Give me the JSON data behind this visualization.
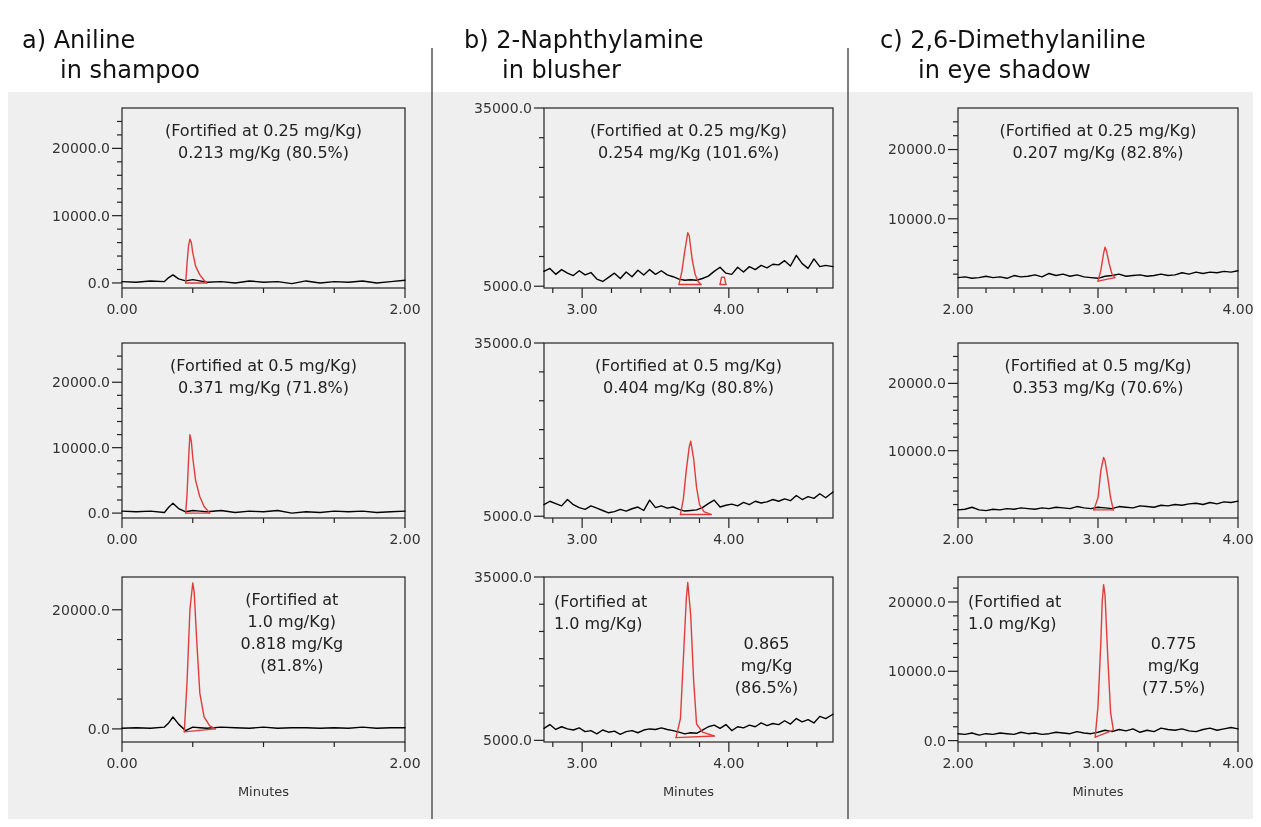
{
  "chart_data": [
    {
      "type": "line",
      "title": "a)  Aniline\nin shampoo",
      "annotations": [
        "(Fortified at 0.25 mg/Kg)\n0.213 mg/Kg (80.5%)"
      ],
      "xlim": [
        0,
        2
      ],
      "xticks": [
        {
          "value": 0,
          "label": "0.00"
        },
        {
          "value": 0.5,
          "label": null
        },
        {
          "value": 1,
          "label": null
        },
        {
          "value": 1.5,
          "label": null
        },
        {
          "value": 2,
          "label": "2.00"
        }
      ],
      "ylim": [
        -750,
        26000
      ],
      "yticks": [
        {
          "value": 0,
          "label": "0.0"
        },
        {
          "value": 2000,
          "label": null
        },
        {
          "value": 4000,
          "label": null
        },
        {
          "value": 6000,
          "label": null
        },
        {
          "value": 8000,
          "label": null
        },
        {
          "value": 10000,
          "label": "10000.0"
        },
        {
          "value": 12000,
          "label": null
        },
        {
          "value": 14000,
          "label": null
        },
        {
          "value": 16000,
          "label": null
        },
        {
          "value": 18000,
          "label": null
        },
        {
          "value": 20000,
          "label": "20000.0"
        },
        {
          "value": 22000,
          "label": null
        },
        {
          "value": 24000,
          "label": null
        }
      ],
      "series": [
        {
          "color": "#000000",
          "x": [
            0,
            0.1,
            0.2,
            0.3,
            0.33,
            0.36,
            0.4,
            0.45,
            0.5,
            0.55,
            0.6,
            0.7,
            0.8,
            0.9,
            1.0,
            1.1,
            1.2,
            1.3,
            1.4,
            1.5,
            1.6,
            1.7,
            1.8,
            1.9,
            2.0
          ],
          "values": [
            200,
            100,
            300,
            200,
            800,
            1200,
            600,
            300,
            500,
            300,
            100,
            200,
            0,
            300,
            100,
            200,
            -100,
            300,
            0,
            200,
            100,
            300,
            0,
            200,
            400
          ]
        },
        {
          "color": "#e03c3c",
          "x": [
            0.45,
            0.46,
            0.47,
            0.48,
            0.49,
            0.5,
            0.52,
            0.55,
            0.58,
            0.6
          ],
          "values": [
            0,
            3000,
            5500,
            6500,
            6000,
            4500,
            2500,
            1200,
            400,
            0
          ]
        },
        {
          "color": "#e03c3c",
          "x": [
            0.45,
            0.6
          ],
          "values": [
            0,
            0
          ]
        }
      ]
    },
    {
      "type": "line",
      "annotations": [
        "(Fortified at 0.5 mg/Kg)\n0.371 mg/Kg (71.8%)"
      ],
      "xlim": [
        0,
        2
      ],
      "xticks": [
        {
          "value": 0,
          "label": "0.00"
        },
        {
          "value": 0.5,
          "label": null
        },
        {
          "value": 1,
          "label": null
        },
        {
          "value": 1.5,
          "label": null
        },
        {
          "value": 2,
          "label": "2.00"
        }
      ],
      "ylim": [
        -750,
        26000
      ],
      "yticks": [
        {
          "value": 0,
          "label": "0.0"
        },
        {
          "value": 2000,
          "label": null
        },
        {
          "value": 4000,
          "label": null
        },
        {
          "value": 6000,
          "label": null
        },
        {
          "value": 8000,
          "label": null
        },
        {
          "value": 10000,
          "label": "10000.0"
        },
        {
          "value": 12000,
          "label": null
        },
        {
          "value": 14000,
          "label": null
        },
        {
          "value": 16000,
          "label": null
        },
        {
          "value": 18000,
          "label": null
        },
        {
          "value": 20000,
          "label": "20000.0"
        },
        {
          "value": 22000,
          "label": null
        },
        {
          "value": 24000,
          "label": null
        }
      ],
      "series": [
        {
          "color": "#000000",
          "x": [
            0,
            0.1,
            0.2,
            0.3,
            0.33,
            0.36,
            0.4,
            0.45,
            0.5,
            0.55,
            0.6,
            0.7,
            0.8,
            0.9,
            1.0,
            1.1,
            1.2,
            1.3,
            1.4,
            1.5,
            1.6,
            1.7,
            1.8,
            1.9,
            2.0
          ],
          "values": [
            300,
            200,
            300,
            100,
            900,
            1500,
            700,
            200,
            400,
            300,
            200,
            400,
            100,
            300,
            200,
            400,
            0,
            200,
            100,
            300,
            200,
            300,
            100,
            200,
            300
          ]
        },
        {
          "color": "#e03c3c",
          "x": [
            0.45,
            0.46,
            0.47,
            0.48,
            0.49,
            0.5,
            0.52,
            0.55,
            0.58,
            0.62
          ],
          "values": [
            0,
            3000,
            8000,
            12000,
            11000,
            8500,
            5000,
            2500,
            1000,
            0
          ]
        },
        {
          "color": "#e03c3c",
          "x": [
            0.45,
            0.62
          ],
          "values": [
            0,
            0
          ]
        }
      ]
    },
    {
      "type": "line",
      "xlabel": "Minutes",
      "annotations": [
        "(Fortified at\n1.0 mg/Kg)\n0.818 mg/Kg\n(81.8%)"
      ],
      "xlim": [
        0,
        2
      ],
      "xticks": [
        {
          "value": 0,
          "label": "0.00"
        },
        {
          "value": 0.5,
          "label": null
        },
        {
          "value": 1,
          "label": null
        },
        {
          "value": 1.5,
          "label": null
        },
        {
          "value": 2,
          "label": "2.00"
        }
      ],
      "ylim": [
        -2200,
        25500
      ],
      "yticks": [
        {
          "value": 0,
          "label": "0.0"
        },
        {
          "value": 5000,
          "label": null
        },
        {
          "value": 10000,
          "label": null
        },
        {
          "value": 15000,
          "label": null
        },
        {
          "value": 20000,
          "label": "20000.0"
        }
      ],
      "series": [
        {
          "color": "#000000",
          "x": [
            0,
            0.1,
            0.2,
            0.3,
            0.33,
            0.36,
            0.4,
            0.45,
            0.5,
            0.55,
            0.6,
            0.7,
            0.8,
            0.9,
            1.0,
            1.1,
            1.2,
            1.3,
            1.4,
            1.5,
            1.6,
            1.7,
            1.8,
            1.9,
            2.0
          ],
          "values": [
            100,
            200,
            100,
            300,
            1000,
            2000,
            800,
            -300,
            300,
            200,
            100,
            300,
            200,
            100,
            300,
            100,
            200,
            200,
            100,
            200,
            100,
            300,
            100,
            200,
            200
          ]
        },
        {
          "color": "#e03c3c",
          "x": [
            0.44,
            0.46,
            0.48,
            0.5,
            0.51,
            0.53,
            0.55,
            0.58,
            0.62,
            0.66
          ],
          "values": [
            -500,
            8000,
            20000,
            24500,
            23000,
            14000,
            6000,
            2000,
            500,
            0
          ]
        },
        {
          "color": "#e03c3c",
          "x": [
            0.44,
            0.66
          ],
          "values": [
            -500,
            0
          ]
        }
      ]
    },
    {
      "type": "line",
      "title": "b)  2-Naphthylamine\nin blusher",
      "annotations": [
        "(Fortified at 0.25 mg/Kg)\n0.254 mg/Kg (101.6%)"
      ],
      "xlim": [
        2.74,
        4.71
      ],
      "xticks": [
        {
          "value": 2.8,
          "label": null
        },
        {
          "value": 3,
          "label": "3.00"
        },
        {
          "value": 3.2,
          "label": null
        },
        {
          "value": 3.4,
          "label": null
        },
        {
          "value": 3.6,
          "label": null
        },
        {
          "value": 3.8,
          "label": null
        },
        {
          "value": 4,
          "label": "4.00"
        },
        {
          "value": 4.2,
          "label": null
        },
        {
          "value": 4.4,
          "label": null
        },
        {
          "value": 4.6,
          "label": null
        }
      ],
      "ylim": [
        4700,
        35000
      ],
      "yticks": [
        {
          "value": 5000,
          "label": "5000.0"
        },
        {
          "value": 10000,
          "label": null
        },
        {
          "value": 15000,
          "label": null
        },
        {
          "value": 20000,
          "label": null
        },
        {
          "value": 25000,
          "label": null
        },
        {
          "value": 30000,
          "label": null
        },
        {
          "value": 35000,
          "label": "35000.0"
        }
      ],
      "series": [
        {
          "color": "#000000",
          "x": [
            2.74,
            2.78,
            2.82,
            2.86,
            2.9,
            2.94,
            2.98,
            3.02,
            3.06,
            3.1,
            3.14,
            3.18,
            3.22,
            3.26,
            3.3,
            3.34,
            3.38,
            3.42,
            3.46,
            3.5,
            3.54,
            3.58,
            3.62,
            3.66,
            3.7,
            3.74,
            3.78,
            3.82,
            3.86,
            3.9,
            3.94,
            3.98,
            4.02,
            4.06,
            4.1,
            4.14,
            4.18,
            4.22,
            4.26,
            4.3,
            4.34,
            4.38,
            4.42,
            4.46,
            4.5,
            4.54,
            4.58,
            4.62,
            4.66,
            4.71
          ],
          "values": [
            7500,
            8000,
            7000,
            7800,
            7200,
            6800,
            7600,
            6900,
            7300,
            6200,
            5800,
            6500,
            7200,
            6300,
            7400,
            6600,
            7700,
            6900,
            7800,
            7000,
            7600,
            6900,
            6600,
            6200,
            6000,
            6100,
            6000,
            6300,
            6700,
            7500,
            8200,
            7200,
            7000,
            8200,
            7400,
            8300,
            7800,
            8500,
            8100,
            8700,
            8600,
            9300,
            8400,
            10200,
            8800,
            8000,
            9600,
            8300,
            8500,
            8300
          ]
        },
        {
          "color": "#e03c3c",
          "x": [
            3.66,
            3.68,
            3.7,
            3.72,
            3.73,
            3.75,
            3.77,
            3.79,
            3.81
          ],
          "values": [
            5300,
            7500,
            11000,
            14000,
            13500,
            9500,
            7000,
            5800,
            5300
          ]
        },
        {
          "color": "#e03c3c",
          "x": [
            3.66,
            3.81
          ],
          "values": [
            5300,
            5300
          ]
        },
        {
          "color": "#e03c3c",
          "x": [
            3.94,
            3.95,
            3.97,
            3.98
          ],
          "values": [
            5300,
            6500,
            6500,
            5300
          ]
        },
        {
          "color": "#e03c3c",
          "x": [
            3.94,
            3.98
          ],
          "values": [
            5300,
            5300
          ]
        }
      ]
    },
    {
      "type": "line",
      "annotations": [
        "(Fortified at 0.5 mg/Kg)\n0.404 mg/Kg (80.8%)"
      ],
      "xlim": [
        2.74,
        4.71
      ],
      "xticks": [
        {
          "value": 2.8,
          "label": null
        },
        {
          "value": 3,
          "label": "3.00"
        },
        {
          "value": 3.2,
          "label": null
        },
        {
          "value": 3.4,
          "label": null
        },
        {
          "value": 3.6,
          "label": null
        },
        {
          "value": 3.8,
          "label": null
        },
        {
          "value": 4,
          "label": "4.00"
        },
        {
          "value": 4.2,
          "label": null
        },
        {
          "value": 4.4,
          "label": null
        },
        {
          "value": 4.6,
          "label": null
        }
      ],
      "ylim": [
        4700,
        35000
      ],
      "yticks": [
        {
          "value": 5000,
          "label": "5000.0"
        },
        {
          "value": 10000,
          "label": null
        },
        {
          "value": 15000,
          "label": null
        },
        {
          "value": 20000,
          "label": null
        },
        {
          "value": 25000,
          "label": null
        },
        {
          "value": 30000,
          "label": null
        },
        {
          "value": 35000,
          "label": "35000.0"
        }
      ],
      "series": [
        {
          "color": "#000000",
          "x": [
            2.74,
            2.78,
            2.82,
            2.86,
            2.9,
            2.94,
            2.98,
            3.02,
            3.06,
            3.1,
            3.14,
            3.18,
            3.22,
            3.26,
            3.3,
            3.34,
            3.38,
            3.42,
            3.46,
            3.5,
            3.54,
            3.58,
            3.62,
            3.66,
            3.7,
            3.74,
            3.78,
            3.82,
            3.86,
            3.9,
            3.94,
            3.98,
            4.02,
            4.06,
            4.1,
            4.14,
            4.18,
            4.22,
            4.26,
            4.3,
            4.34,
            4.38,
            4.42,
            4.46,
            4.5,
            4.54,
            4.58,
            4.62,
            4.66,
            4.71
          ],
          "values": [
            7000,
            7600,
            7200,
            6800,
            7900,
            7000,
            6500,
            6200,
            6800,
            6400,
            6000,
            5600,
            5800,
            6200,
            5900,
            6300,
            6600,
            6000,
            7800,
            6500,
            6800,
            6400,
            6600,
            6200,
            5900,
            6000,
            6100,
            6500,
            7200,
            7800,
            6600,
            6900,
            7100,
            6800,
            7400,
            7000,
            7600,
            7300,
            7500,
            7900,
            7600,
            8000,
            7700,
            8600,
            7900,
            8400,
            8100,
            8900,
            8200,
            9200
          ]
        },
        {
          "color": "#e03c3c",
          "x": [
            3.67,
            3.69,
            3.71,
            3.73,
            3.74,
            3.76,
            3.78,
            3.8,
            3.83,
            3.88
          ],
          "values": [
            5300,
            8000,
            13000,
            17000,
            18000,
            15000,
            10000,
            7000,
            5800,
            5300
          ]
        },
        {
          "color": "#e03c3c",
          "x": [
            3.67,
            3.88
          ],
          "values": [
            5300,
            5300
          ]
        }
      ]
    },
    {
      "type": "line",
      "xlabel": "Minutes",
      "annotations": [
        "(Fortified at\n1.0 mg/Kg)",
        "0.865\nmg/Kg\n(86.5%)"
      ],
      "xlim": [
        2.74,
        4.71
      ],
      "xticks": [
        {
          "value": 2.8,
          "label": null
        },
        {
          "value": 3,
          "label": "3.00"
        },
        {
          "value": 3.2,
          "label": null
        },
        {
          "value": 3.4,
          "label": null
        },
        {
          "value": 3.6,
          "label": null
        },
        {
          "value": 3.8,
          "label": null
        },
        {
          "value": 4,
          "label": "4.00"
        },
        {
          "value": 4.2,
          "label": null
        },
        {
          "value": 4.4,
          "label": null
        },
        {
          "value": 4.6,
          "label": null
        }
      ],
      "ylim": [
        4700,
        35000
      ],
      "yticks": [
        {
          "value": 5000,
          "label": "5000.0"
        },
        {
          "value": 10000,
          "label": null
        },
        {
          "value": 15000,
          "label": null
        },
        {
          "value": 20000,
          "label": null
        },
        {
          "value": 25000,
          "label": null
        },
        {
          "value": 30000,
          "label": null
        },
        {
          "value": 35000,
          "label": "35000.0"
        }
      ],
      "series": [
        {
          "color": "#000000",
          "x": [
            2.74,
            2.78,
            2.82,
            2.86,
            2.9,
            2.94,
            2.98,
            3.02,
            3.06,
            3.1,
            3.14,
            3.18,
            3.22,
            3.26,
            3.3,
            3.34,
            3.38,
            3.42,
            3.46,
            3.5,
            3.54,
            3.58,
            3.62,
            3.66,
            3.7,
            3.74,
            3.78,
            3.82,
            3.86,
            3.9,
            3.94,
            3.98,
            4.02,
            4.06,
            4.1,
            4.14,
            4.18,
            4.22,
            4.26,
            4.3,
            4.34,
            4.38,
            4.42,
            4.46,
            4.5,
            4.54,
            4.58,
            4.62,
            4.66,
            4.71
          ],
          "values": [
            7200,
            7900,
            7000,
            7500,
            7100,
            6900,
            7300,
            6600,
            6800,
            6200,
            6900,
            6500,
            6700,
            6100,
            6600,
            6800,
            6400,
            6900,
            7100,
            7000,
            7300,
            7000,
            6800,
            6500,
            6200,
            6400,
            6300,
            6900,
            7500,
            7800,
            7200,
            7900,
            6800,
            7500,
            7300,
            7800,
            7500,
            8200,
            7700,
            8100,
            7900,
            8600,
            8000,
            9000,
            8400,
            8800,
            8200,
            9400,
            9000,
            9800
          ]
        },
        {
          "color": "#e03c3c",
          "x": [
            3.64,
            3.67,
            3.69,
            3.71,
            3.72,
            3.74,
            3.76,
            3.78,
            3.82,
            3.9
          ],
          "values": [
            5500,
            9000,
            20000,
            31000,
            34000,
            28000,
            16000,
            8000,
            6500,
            5800
          ]
        },
        {
          "color": "#e03c3c",
          "x": [
            3.64,
            3.9
          ],
          "values": [
            5500,
            5800
          ]
        }
      ]
    },
    {
      "type": "line",
      "title": "c)  2,6-Dimethylaniline\nin eye shadow",
      "annotations": [
        "(Fortified at 0.25 mg/Kg)\n0.207 mg/Kg (82.8%)"
      ],
      "xlim": [
        2,
        4
      ],
      "xticks": [
        {
          "value": 2,
          "label": "2.00"
        },
        {
          "value": 2.2,
          "label": null
        },
        {
          "value": 2.4,
          "label": null
        },
        {
          "value": 2.6,
          "label": null
        },
        {
          "value": 2.8,
          "label": null
        },
        {
          "value": 3,
          "label": "3.00"
        },
        {
          "value": 3.2,
          "label": null
        },
        {
          "value": 3.4,
          "label": null
        },
        {
          "value": 3.6,
          "label": null
        },
        {
          "value": 3.8,
          "label": null
        },
        {
          "value": 4,
          "label": "4.00"
        }
      ],
      "ylim": [
        0,
        26000
      ],
      "yticks": [
        {
          "value": 2000,
          "label": null
        },
        {
          "value": 4000,
          "label": null
        },
        {
          "value": 6000,
          "label": null
        },
        {
          "value": 8000,
          "label": null
        },
        {
          "value": 10000,
          "label": "10000.0"
        },
        {
          "value": 12000,
          "label": null
        },
        {
          "value": 14000,
          "label": null
        },
        {
          "value": 16000,
          "label": null
        },
        {
          "value": 18000,
          "label": null
        },
        {
          "value": 20000,
          "label": "20000.0"
        },
        {
          "value": 22000,
          "label": null
        },
        {
          "value": 24000,
          "label": null
        }
      ],
      "series": [
        {
          "color": "#000000",
          "x": [
            2,
            2.05,
            2.1,
            2.15,
            2.2,
            2.25,
            2.3,
            2.35,
            2.4,
            2.45,
            2.5,
            2.55,
            2.6,
            2.65,
            2.7,
            2.75,
            2.8,
            2.85,
            2.9,
            2.95,
            3,
            3.05,
            3.1,
            3.15,
            3.2,
            3.25,
            3.3,
            3.35,
            3.4,
            3.45,
            3.5,
            3.55,
            3.6,
            3.65,
            3.7,
            3.75,
            3.8,
            3.85,
            3.9,
            3.95,
            4
          ],
          "values": [
            1500,
            1600,
            1400,
            1500,
            1700,
            1500,
            1600,
            1400,
            1800,
            1600,
            1700,
            1900,
            1600,
            2100,
            1800,
            2000,
            1700,
            1900,
            1600,
            1500,
            1400,
            1700,
            1800,
            2000,
            1700,
            1800,
            1900,
            1700,
            1800,
            2000,
            1800,
            1900,
            2200,
            2000,
            2300,
            2100,
            2300,
            2200,
            2400,
            2300,
            2500
          ]
        },
        {
          "color": "#e03c3c",
          "x": [
            3,
            3.02,
            3.04,
            3.05,
            3.06,
            3.08,
            3.1,
            3.12
          ],
          "values": [
            1000,
            2500,
            5000,
            5900,
            5400,
            3500,
            2000,
            1500
          ]
        },
        {
          "color": "#e03c3c",
          "x": [
            3,
            3.12
          ],
          "values": [
            1000,
            1500
          ]
        }
      ]
    },
    {
      "type": "line",
      "annotations": [
        "(Fortified at 0.5 mg/Kg)\n0.353 mg/Kg (70.6%)"
      ],
      "xlim": [
        2,
        4
      ],
      "xticks": [
        {
          "value": 2,
          "label": "2.00"
        },
        {
          "value": 2.2,
          "label": null
        },
        {
          "value": 2.4,
          "label": null
        },
        {
          "value": 2.6,
          "label": null
        },
        {
          "value": 2.8,
          "label": null
        },
        {
          "value": 3,
          "label": "3.00"
        },
        {
          "value": 3.2,
          "label": null
        },
        {
          "value": 3.4,
          "label": null
        },
        {
          "value": 3.6,
          "label": null
        },
        {
          "value": 3.8,
          "label": null
        },
        {
          "value": 4,
          "label": "4.00"
        }
      ],
      "ylim": [
        0,
        26000
      ],
      "yticks": [
        {
          "value": 2000,
          "label": null
        },
        {
          "value": 4000,
          "label": null
        },
        {
          "value": 6000,
          "label": null
        },
        {
          "value": 8000,
          "label": null
        },
        {
          "value": 10000,
          "label": "10000.0"
        },
        {
          "value": 12000,
          "label": null
        },
        {
          "value": 14000,
          "label": null
        },
        {
          "value": 16000,
          "label": null
        },
        {
          "value": 18000,
          "label": null
        },
        {
          "value": 20000,
          "label": "20000.0"
        },
        {
          "value": 22000,
          "label": null
        },
        {
          "value": 24000,
          "label": null
        }
      ],
      "series": [
        {
          "color": "#000000",
          "x": [
            2,
            2.05,
            2.1,
            2.15,
            2.2,
            2.25,
            2.3,
            2.35,
            2.4,
            2.45,
            2.5,
            2.55,
            2.6,
            2.65,
            2.7,
            2.75,
            2.8,
            2.85,
            2.9,
            2.95,
            3,
            3.05,
            3.1,
            3.15,
            3.2,
            3.25,
            3.3,
            3.35,
            3.4,
            3.45,
            3.5,
            3.55,
            3.6,
            3.65,
            3.7,
            3.75,
            3.8,
            3.85,
            3.9,
            3.95,
            4
          ],
          "values": [
            1200,
            1300,
            1600,
            1200,
            1100,
            1300,
            1200,
            1400,
            1300,
            1500,
            1400,
            1300,
            1500,
            1400,
            1600,
            1500,
            1400,
            1700,
            1500,
            1400,
            1600,
            1500,
            1400,
            1700,
            1600,
            1500,
            1800,
            1700,
            1600,
            1900,
            1800,
            2000,
            1900,
            2100,
            2200,
            2000,
            2300,
            2100,
            2400,
            2300,
            2500
          ]
        },
        {
          "color": "#e03c3c",
          "x": [
            2.97,
            3,
            3.02,
            3.04,
            3.05,
            3.07,
            3.09,
            3.11
          ],
          "values": [
            1200,
            3000,
            7000,
            9000,
            8500,
            6000,
            3000,
            1200
          ]
        },
        {
          "color": "#e03c3c",
          "x": [
            2.97,
            3.11
          ],
          "values": [
            1200,
            1200
          ]
        }
      ]
    },
    {
      "type": "line",
      "xlabel": "Minutes",
      "annotations": [
        "(Fortified at\n1.0 mg/Kg)",
        "0.775\nmg/Kg\n(77.5%)"
      ],
      "xlim": [
        2,
        4
      ],
      "xticks": [
        {
          "value": 2,
          "label": "2.00"
        },
        {
          "value": 2.2,
          "label": null
        },
        {
          "value": 2.4,
          "label": null
        },
        {
          "value": 2.6,
          "label": null
        },
        {
          "value": 2.8,
          "label": null
        },
        {
          "value": 3,
          "label": "3.00"
        },
        {
          "value": 3.2,
          "label": null
        },
        {
          "value": 3.4,
          "label": null
        },
        {
          "value": 3.6,
          "label": null
        },
        {
          "value": 3.8,
          "label": null
        },
        {
          "value": 4,
          "label": "4.00"
        }
      ],
      "ylim": [
        -200,
        23600
      ],
      "yticks": [
        {
          "value": 0,
          "label": "0.0"
        },
        {
          "value": 2000,
          "label": null
        },
        {
          "value": 4000,
          "label": null
        },
        {
          "value": 6000,
          "label": null
        },
        {
          "value": 8000,
          "label": null
        },
        {
          "value": 10000,
          "label": "10000.0"
        },
        {
          "value": 12000,
          "label": null
        },
        {
          "value": 14000,
          "label": null
        },
        {
          "value": 16000,
          "label": null
        },
        {
          "value": 18000,
          "label": null
        },
        {
          "value": 20000,
          "label": "20000.0"
        },
        {
          "value": 22000,
          "label": null
        }
      ],
      "series": [
        {
          "color": "#000000",
          "x": [
            2,
            2.05,
            2.1,
            2.15,
            2.2,
            2.25,
            2.3,
            2.35,
            2.4,
            2.45,
            2.5,
            2.55,
            2.6,
            2.65,
            2.7,
            2.75,
            2.8,
            2.85,
            2.9,
            2.95,
            3,
            3.05,
            3.1,
            3.15,
            3.2,
            3.25,
            3.3,
            3.35,
            3.4,
            3.45,
            3.5,
            3.55,
            3.6,
            3.65,
            3.7,
            3.75,
            3.8,
            3.85,
            3.9,
            3.95,
            4
          ],
          "values": [
            1000,
            900,
            1100,
            800,
            1000,
            900,
            1100,
            1000,
            900,
            1200,
            1000,
            1100,
            900,
            1000,
            1200,
            1100,
            1000,
            1300,
            1100,
            1000,
            1200,
            1500,
            1300,
            1600,
            1400,
            1700,
            1200,
            1500,
            1300,
            1800,
            1600,
            1500,
            1700,
            1400,
            1300,
            1600,
            1800,
            1500,
            1700,
            1900,
            1700
          ]
        },
        {
          "color": "#e03c3c",
          "x": [
            2.98,
            3,
            3.02,
            3.03,
            3.04,
            3.05,
            3.07,
            3.09,
            3.11
          ],
          "values": [
            500,
            5000,
            14000,
            20000,
            22500,
            21000,
            12000,
            4000,
            1500
          ]
        },
        {
          "color": "#e03c3c",
          "x": [
            2.98,
            3.11
          ],
          "values": [
            500,
            1500
          ]
        }
      ]
    }
  ]
}
